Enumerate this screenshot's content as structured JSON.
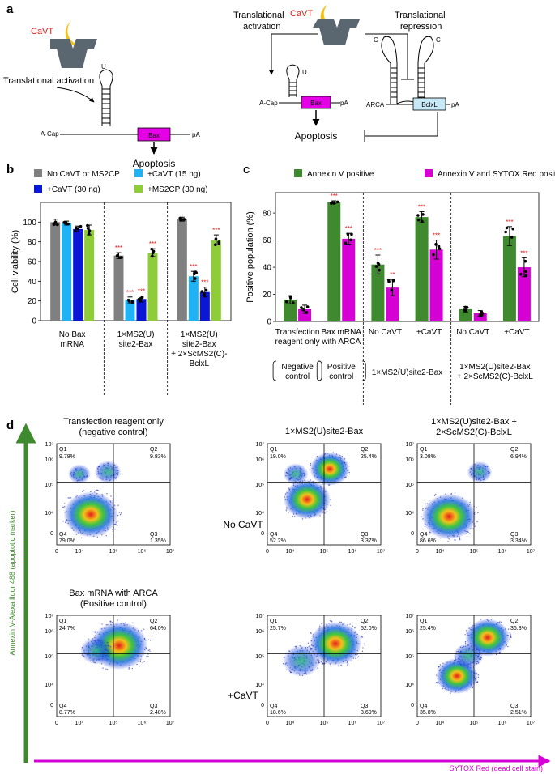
{
  "panels": {
    "a": "a",
    "b": "b",
    "c": "c",
    "d": "d"
  },
  "panel_a": {
    "left": {
      "cavt": "CaVT",
      "label": "Translational activation",
      "acap": "A-Cap",
      "gene": "Bax",
      "pa": "pA",
      "u": "U",
      "outcome": "Apoptosis"
    },
    "right": {
      "cavt": "CaVT",
      "activation": "Translational\nactivation",
      "repression": "Translational\nrepression",
      "acap": "A-Cap",
      "gene": "Bax",
      "pa": "pA",
      "u": "U",
      "c1": "C",
      "c2": "C",
      "arca": "ARCA",
      "gene2": "BclxL",
      "pa2": "pA",
      "outcome": "Apoptosis"
    },
    "colors": {
      "cavt_text": "#e02020",
      "moon": "#f4c21a",
      "protein": "#5b6770",
      "bax": "#e600e6",
      "bclxl": "#c6e8f7"
    }
  },
  "chart_data": [
    {
      "panel": "b",
      "type": "bar",
      "ylabel": "Cell viability (%)",
      "ylim": [
        0,
        120
      ],
      "yticks": [
        0,
        20,
        40,
        60,
        80,
        100
      ],
      "legend": [
        "No CaVT or MS2CP",
        "+CaVT (15 ng)",
        "+CaVT (30 ng)",
        "+MS2CP (30 ng)"
      ],
      "colors": [
        "#808080",
        "#1fb3f5",
        "#0a17d6",
        "#8fcc3a"
      ],
      "groups": [
        {
          "label": "No Bax\nmRNA",
          "values": [
            100,
            99,
            93,
            92
          ],
          "errors": [
            3,
            2,
            3,
            5
          ],
          "stars": [
            "",
            "",
            "",
            ""
          ]
        },
        {
          "label": "1×MS2(U)\nsite2-Bax",
          "values": [
            66,
            21,
            22,
            69
          ],
          "errors": [
            3,
            3,
            3,
            4
          ],
          "stars": [
            "***",
            "***",
            "***",
            "***"
          ]
        },
        {
          "label": "1×MS2(U)\nsite2-Bax\n+ 2×ScMS2(C)-\nBclxL",
          "values": [
            103,
            45,
            29,
            82
          ],
          "errors": [
            2,
            5,
            5,
            5
          ],
          "stars": [
            "",
            "***",
            "***",
            "***"
          ]
        }
      ]
    },
    {
      "panel": "c",
      "type": "bar",
      "ylabel": "Positive population (%)",
      "ylim": [
        0,
        95
      ],
      "yticks": [
        0,
        20,
        40,
        60,
        80
      ],
      "legend": [
        "Annexin V positive",
        "Annexin V and SYTOX Red positive"
      ],
      "colors": [
        "#3f8a2e",
        "#d400d4"
      ],
      "groups": [
        {
          "label": "Transfection\nreagent only",
          "values": [
            16,
            9
          ],
          "errors": [
            3,
            3
          ],
          "stars": [
            "",
            ""
          ]
        },
        {
          "label": "Bax mRNA\nwith ARCA",
          "values": [
            88,
            61
          ],
          "errors": [
            1,
            4
          ],
          "stars": [
            "***",
            "***"
          ]
        },
        {
          "label": "No CaVT",
          "values": [
            42,
            25
          ],
          "errors": [
            7,
            6
          ],
          "stars": [
            "***",
            "**"
          ]
        },
        {
          "label": "+CaVT",
          "values": [
            77,
            53
          ],
          "errors": [
            4,
            7
          ],
          "stars": [
            "***",
            "***"
          ]
        },
        {
          "label": "No CaVT",
          "values": [
            9,
            6
          ],
          "errors": [
            2,
            2
          ],
          "stars": [
            "",
            ""
          ]
        },
        {
          "label": "+CaVT",
          "values": [
            63,
            40
          ],
          "errors": [
            7,
            7
          ],
          "stars": [
            "***",
            "***"
          ]
        }
      ],
      "brackets": [
        "Negative\ncontrol",
        "Positive\ncontrol"
      ],
      "construct_labels": [
        "1×MS2(U)site2-Bax",
        "1×MS2(U)site2-Bax\n+ 2×ScMS2(C)-BclxL"
      ]
    }
  ],
  "panel_d": {
    "ylabel": "Annexin V-Alexa fluor 488 (apoptotic marker)",
    "xlabel": "SYTOX Red (dead cell stain)",
    "row_labels": [
      "No CaVT",
      "+CaVT"
    ],
    "ticks": {
      "x": [
        "0",
        "10⁴",
        "10⁵",
        "10⁶",
        "10⁷"
      ],
      "y": [
        "0",
        "10⁴",
        "10⁵",
        "10⁶",
        "10⁷"
      ]
    },
    "quadrants": [
      "Q1",
      "Q2",
      "Q3",
      "Q4"
    ],
    "plots": [
      {
        "title": "Transfection reagent only\n(negative control)",
        "q1": "9.78%",
        "q2": "9.83%",
        "q3": "1.35%",
        "q4": "79.0%"
      },
      {
        "title": "1×MS2(U)site2-Bax",
        "q1": "19.0%",
        "q2": "25.4%",
        "q3": "3.37%",
        "q4": "52.2%"
      },
      {
        "title": "1×MS2(U)site2-Bax +\n2×ScMS2(C)-BclxL",
        "q1": "3.08%",
        "q2": "6.94%",
        "q3": "3.34%",
        "q4": "86.6%"
      },
      {
        "title": "Bax mRNA with ARCA\n(Positive control)",
        "q1": "24.7%",
        "q2": "64.0%",
        "q3": "2.48%",
        "q4": "8.77%"
      },
      {
        "title": "",
        "q1": "25.7%",
        "q2": "52.0%",
        "q3": "3.69%",
        "q4": "18.6%"
      },
      {
        "title": "",
        "q1": "25.4%",
        "q2": "36.3%",
        "q3": "2.51%",
        "q4": "35.8%"
      }
    ]
  }
}
